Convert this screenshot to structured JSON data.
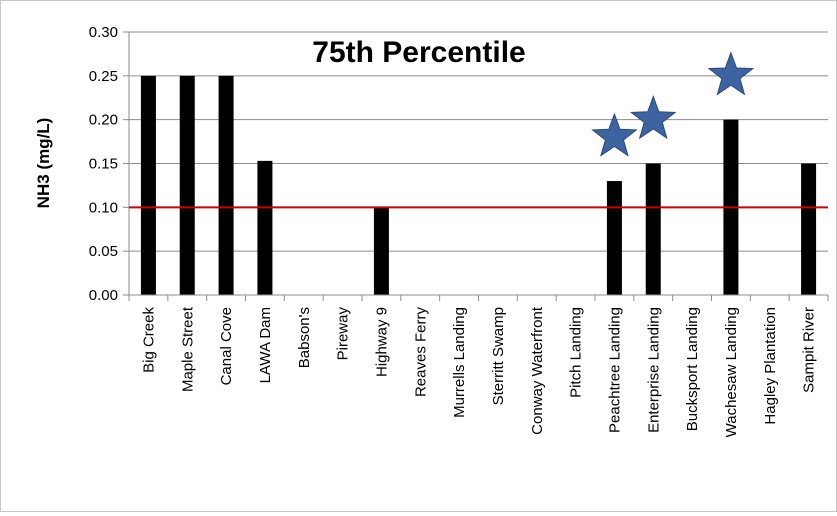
{
  "chart_data": {
    "type": "bar",
    "title": "75th Percentile",
    "xlabel": "",
    "ylabel": "NH3 (mg/L)",
    "ylim": [
      0,
      0.3
    ],
    "yticks": [
      "0.00",
      "0.05",
      "0.10",
      "0.15",
      "0.20",
      "0.25",
      "0.30"
    ],
    "categories": [
      "Big Creek",
      "Maple Street",
      "Canal Cove",
      "LAWA Dam",
      "Babson's",
      "Pireway",
      "Highway 9",
      "Reaves Ferry",
      "Murrells Landing",
      "Sterritt Swamp",
      "Conway Waterfront",
      "Pitch Landing",
      "Peachtree Landing",
      "Enterprise Landing",
      "Bucksport Landing",
      "Wachesaw Landing",
      "Hagley Plantation",
      "Sampit River"
    ],
    "values": [
      0.25,
      0.25,
      0.25,
      0.153,
      null,
      null,
      0.1,
      null,
      null,
      null,
      null,
      null,
      0.13,
      0.15,
      null,
      0.2,
      null,
      0.15
    ],
    "reference_line": {
      "value": 0.1,
      "color": "#cc0000"
    },
    "starred_categories": [
      "Peachtree Landing",
      "Enterprise Landing",
      "Wachesaw Landing"
    ],
    "bar_color": "#000000",
    "star_color": "#3d63a0",
    "grid": true,
    "legend": "none"
  }
}
